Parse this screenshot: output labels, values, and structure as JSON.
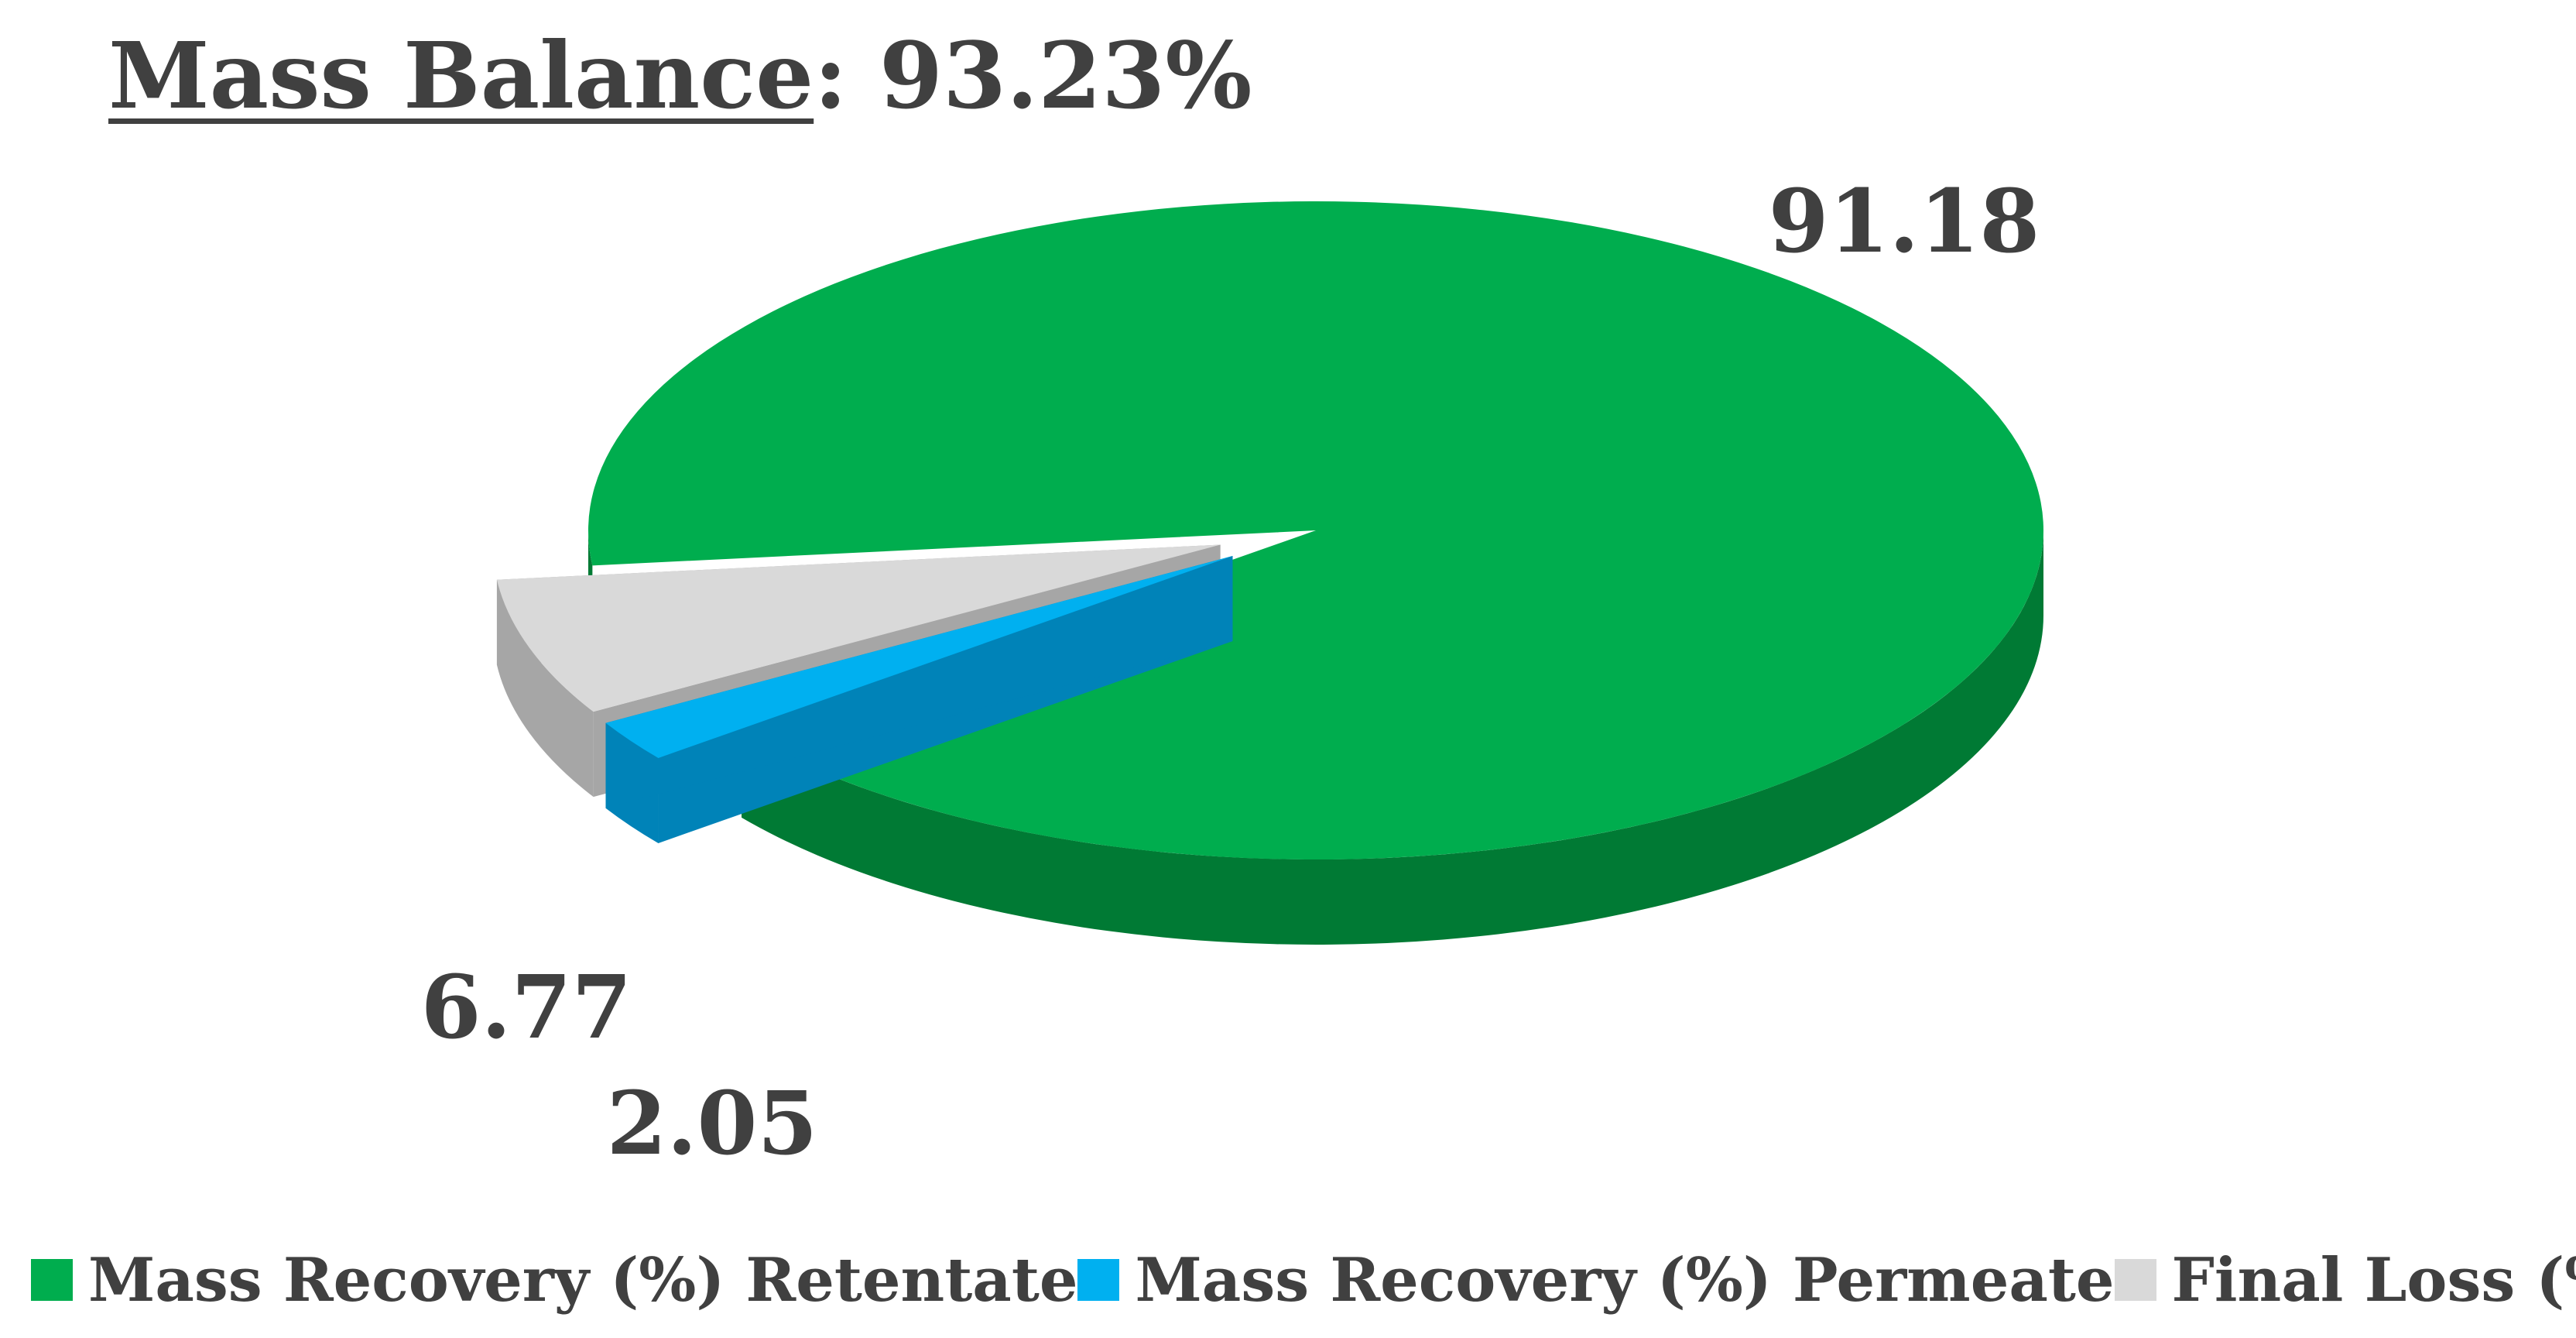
{
  "title": {
    "label": "Mass Balance",
    "suffix": ": 93.23%"
  },
  "chart_data": {
    "type": "pie",
    "style": "3d-exploded",
    "title": "Mass Balance: 93.23%",
    "legend_position": "bottom",
    "slices": [
      {
        "name": "Mass Recovery (%) Retentate",
        "value": 91.18,
        "label": "91.18",
        "color": "#00ad4e",
        "side_color": "#007a34",
        "exploded": false
      },
      {
        "name": "Mass Recovery (%) Permeate",
        "value": 2.05,
        "label": "2.05",
        "color": "#00b0f0",
        "side_color": "#0083b8",
        "exploded": true
      },
      {
        "name": "Final Loss (%)",
        "value": 6.77,
        "label": "6.77",
        "color": "#d9d9d9",
        "side_color": "#a6a6a6",
        "exploded": true
      }
    ]
  }
}
